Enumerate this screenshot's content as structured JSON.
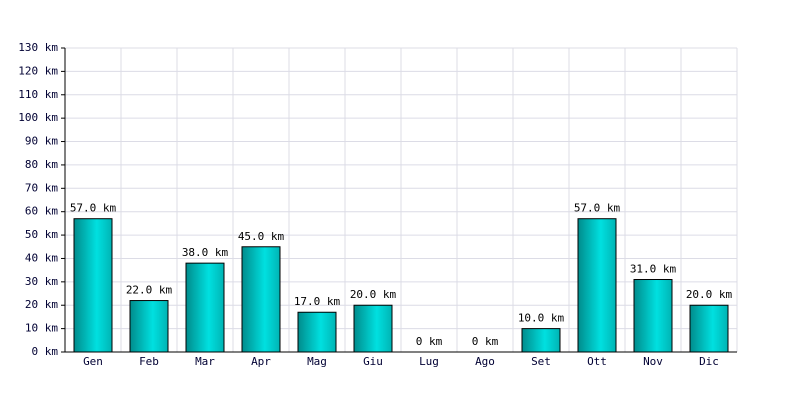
{
  "chart_data": {
    "type": "bar",
    "categories": [
      "Gen",
      "Feb",
      "Mar",
      "Apr",
      "Mag",
      "Giu",
      "Lug",
      "Ago",
      "Set",
      "Ott",
      "Nov",
      "Dic"
    ],
    "values": [
      57,
      22,
      38,
      45,
      17,
      20,
      0,
      0,
      10,
      57,
      31,
      20
    ],
    "value_labels": [
      "57.0 km",
      "22.0 km",
      "38.0 km",
      "45.0 km",
      "17.0 km",
      "20.0 km",
      "0 km",
      "0 km",
      "10.0 km",
      "57.0 km",
      "31.0 km",
      "20.0 km"
    ],
    "color": "#00c8c8",
    "ylim": [
      0,
      130
    ],
    "yticks": [
      {
        "value": 0,
        "label": "0 km"
      },
      {
        "value": 10,
        "label": "10 km"
      },
      {
        "value": 20,
        "label": "20 km"
      },
      {
        "value": 30,
        "label": "30 km"
      },
      {
        "value": 40,
        "label": "40 km"
      },
      {
        "value": 50,
        "label": "50 km"
      },
      {
        "value": 60,
        "label": "60 km"
      },
      {
        "value": 70,
        "label": "70 km"
      },
      {
        "value": 80,
        "label": "80 km"
      },
      {
        "value": 90,
        "label": "90 km"
      },
      {
        "value": 100,
        "label": "100 km"
      },
      {
        "value": 110,
        "label": "110 km"
      },
      {
        "value": 120,
        "label": "120 km"
      },
      {
        "value": 130,
        "label": "130 km"
      }
    ],
    "grid": true
  }
}
